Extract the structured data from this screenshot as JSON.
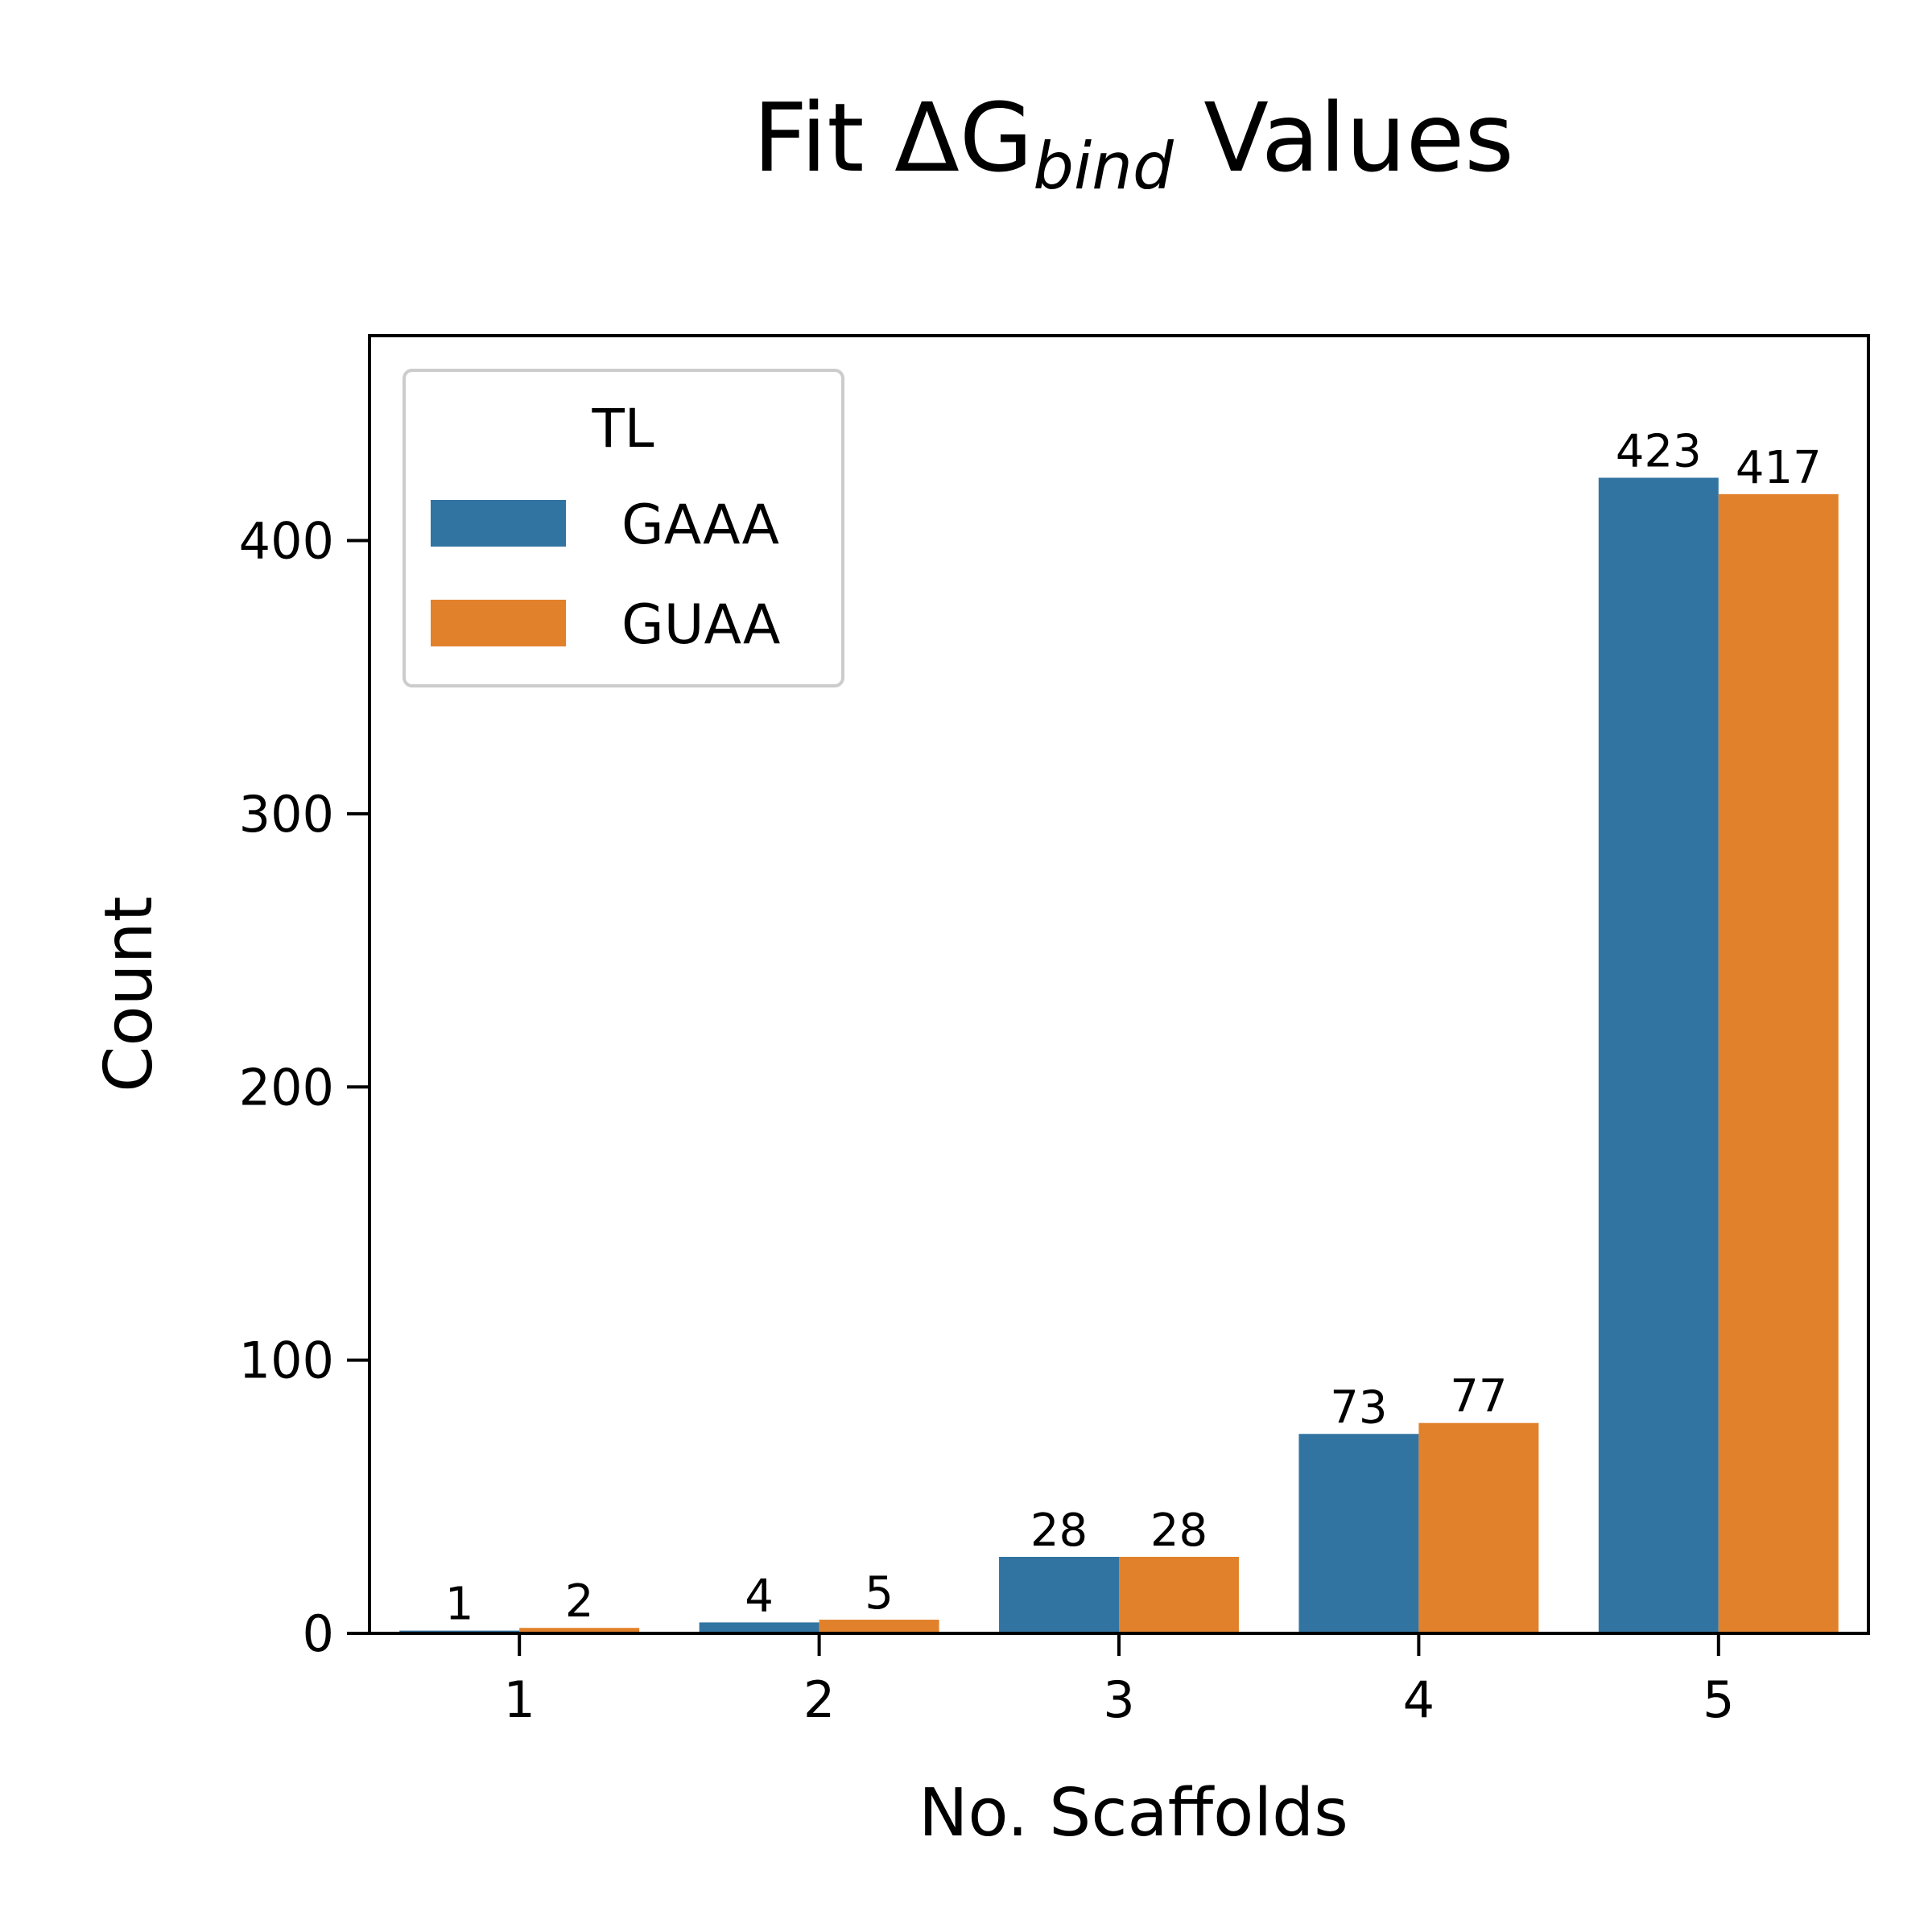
{
  "chart_data": {
    "type": "bar",
    "title": {
      "main": "Fit ΔG",
      "subscript": "bind",
      "suffix": " Values"
    },
    "xlabel": "No. Scaffolds",
    "ylabel": "Count",
    "categories": [
      "1",
      "2",
      "3",
      "4",
      "5"
    ],
    "series": [
      {
        "name": "GAAA",
        "color": "#3274a1",
        "values": [
          1,
          4,
          28,
          73,
          423
        ],
        "labels": [
          "1",
          "4",
          "28",
          "73",
          "423"
        ]
      },
      {
        "name": "GUAA",
        "color": "#e1812c",
        "values": [
          2,
          5,
          28,
          77,
          417
        ],
        "labels": [
          "2",
          "5",
          "28",
          "77",
          "417"
        ]
      }
    ],
    "ylim": [
      0,
      475
    ],
    "yticks": [
      0,
      100,
      200,
      300,
      400
    ],
    "ytick_labels": [
      "0",
      "100",
      "200",
      "300",
      "400"
    ],
    "grid": false,
    "legend": {
      "title": "TL",
      "position": "top-left"
    }
  }
}
